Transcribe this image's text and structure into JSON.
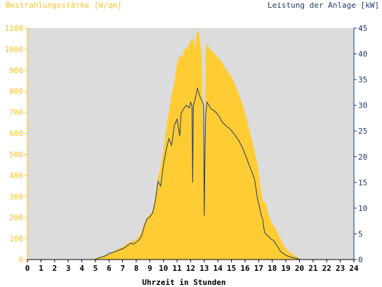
{
  "chart_data": {
    "type": "area",
    "left_axis_label": "Bestrahlungsstärke [W/qm]",
    "right_axis_label": "Leistung der Anlage [kW]",
    "xlabel": "Uhrzeit in Stunden",
    "xlim": [
      0,
      24
    ],
    "ylim_left": [
      0,
      1100
    ],
    "ylim_right": [
      0,
      45
    ],
    "x_ticks": [
      "0",
      "1",
      "2",
      "3",
      "4",
      "5",
      "6",
      "7",
      "8",
      "9",
      "10",
      "11",
      "12",
      "13",
      "14",
      "15",
      "16",
      "17",
      "18",
      "19",
      "20",
      "21",
      "22",
      "23",
      "24"
    ],
    "y_ticks_left": [
      "0",
      "100",
      "200",
      "300",
      "400",
      "500",
      "600",
      "700",
      "800",
      "900",
      "1000",
      "1100"
    ],
    "y_ticks_right": [
      "0",
      "5",
      "10",
      "15",
      "20",
      "25",
      "30",
      "35",
      "40",
      "45"
    ],
    "grid": false,
    "colors": {
      "irradiance": "#ffcc33",
      "power": "#1f3a6e",
      "background": "#dcdcdc"
    },
    "series": [
      {
        "name": "Bestrahlungsstärke [W/qm]",
        "axis": "left",
        "points": [
          [
            0,
            0
          ],
          [
            4.9,
            0
          ],
          [
            5.0,
            8
          ],
          [
            5.5,
            15
          ],
          [
            6.0,
            28
          ],
          [
            6.5,
            45
          ],
          [
            7.0,
            60
          ],
          [
            7.3,
            75
          ],
          [
            7.6,
            85
          ],
          [
            8.0,
            95
          ],
          [
            8.3,
            120
          ],
          [
            8.6,
            170
          ],
          [
            8.8,
            200
          ],
          [
            9.0,
            215
          ],
          [
            9.2,
            230
          ],
          [
            9.4,
            300
          ],
          [
            9.6,
            390
          ],
          [
            9.8,
            440
          ],
          [
            10.0,
            520
          ],
          [
            10.2,
            620
          ],
          [
            10.4,
            700
          ],
          [
            10.6,
            780
          ],
          [
            10.8,
            840
          ],
          [
            11.0,
            930
          ],
          [
            11.2,
            970
          ],
          [
            11.4,
            960
          ],
          [
            11.5,
            990
          ],
          [
            11.6,
            1000
          ],
          [
            11.8,
            1010
          ],
          [
            12.0,
            1040
          ],
          [
            12.2,
            1050
          ],
          [
            12.3,
            1000
          ],
          [
            12.4,
            1060
          ],
          [
            12.5,
            1090
          ],
          [
            12.6,
            1080
          ],
          [
            12.8,
            990
          ],
          [
            12.95,
            400
          ],
          [
            13.0,
            1000
          ],
          [
            13.05,
            250
          ],
          [
            13.1,
            990
          ],
          [
            13.2,
            1030
          ],
          [
            13.4,
            1000
          ],
          [
            13.6,
            990
          ],
          [
            13.8,
            975
          ],
          [
            14.0,
            960
          ],
          [
            14.3,
            940
          ],
          [
            14.6,
            905
          ],
          [
            15.0,
            870
          ],
          [
            15.4,
            810
          ],
          [
            15.8,
            740
          ],
          [
            16.2,
            650
          ],
          [
            16.6,
            540
          ],
          [
            16.9,
            460
          ],
          [
            17.1,
            360
          ],
          [
            17.3,
            280
          ],
          [
            17.5,
            270
          ],
          [
            17.7,
            220
          ],
          [
            18.0,
            170
          ],
          [
            18.3,
            140
          ],
          [
            18.6,
            100
          ],
          [
            18.9,
            60
          ],
          [
            19.2,
            40
          ],
          [
            19.5,
            25
          ],
          [
            19.8,
            12
          ],
          [
            20.0,
            5
          ],
          [
            20.1,
            0
          ],
          [
            24,
            0
          ]
        ]
      },
      {
        "name": "Leistung der Anlage [kW]",
        "axis": "right",
        "points": [
          [
            0,
            0
          ],
          [
            5.0,
            0
          ],
          [
            5.2,
            0.3
          ],
          [
            5.5,
            0.5
          ],
          [
            5.8,
            0.8
          ],
          [
            6.0,
            1.2
          ],
          [
            6.3,
            1.4
          ],
          [
            6.5,
            1.6
          ],
          [
            6.8,
            1.9
          ],
          [
            7.0,
            2.1
          ],
          [
            7.2,
            2.4
          ],
          [
            7.4,
            2.8
          ],
          [
            7.6,
            3.2
          ],
          [
            7.8,
            3.0
          ],
          [
            8.0,
            3.4
          ],
          [
            8.2,
            3.8
          ],
          [
            8.4,
            4.6
          ],
          [
            8.6,
            6.6
          ],
          [
            8.8,
            7.9
          ],
          [
            9.0,
            8.3
          ],
          [
            9.2,
            9.0
          ],
          [
            9.4,
            11.3
          ],
          [
            9.6,
            15.2
          ],
          [
            9.8,
            14.3
          ],
          [
            10.0,
            18.5
          ],
          [
            10.2,
            21.3
          ],
          [
            10.4,
            23.5
          ],
          [
            10.6,
            22.2
          ],
          [
            10.8,
            26.1
          ],
          [
            11.0,
            27.3
          ],
          [
            11.2,
            24.0
          ],
          [
            11.3,
            28.5
          ],
          [
            11.5,
            29.4
          ],
          [
            11.7,
            30.0
          ],
          [
            11.9,
            29.5
          ],
          [
            12.0,
            30.6
          ],
          [
            12.1,
            29.8
          ],
          [
            12.15,
            15.0
          ],
          [
            12.2,
            30.0
          ],
          [
            12.35,
            31.4
          ],
          [
            12.5,
            33.3
          ],
          [
            12.7,
            31.6
          ],
          [
            12.85,
            30.8
          ],
          [
            12.95,
            30.0
          ],
          [
            13.0,
            8.5
          ],
          [
            13.05,
            20.0
          ],
          [
            13.1,
            28.0
          ],
          [
            13.2,
            30.6
          ],
          [
            13.35,
            30.0
          ],
          [
            13.5,
            29.3
          ],
          [
            13.7,
            29.0
          ],
          [
            13.9,
            28.5
          ],
          [
            14.1,
            27.8
          ],
          [
            14.3,
            26.8
          ],
          [
            14.6,
            26.0
          ],
          [
            14.9,
            25.4
          ],
          [
            15.2,
            24.4
          ],
          [
            15.5,
            23.3
          ],
          [
            15.8,
            21.8
          ],
          [
            16.1,
            19.8
          ],
          [
            16.4,
            17.7
          ],
          [
            16.7,
            15.6
          ],
          [
            16.9,
            12.0
          ],
          [
            17.0,
            10.9
          ],
          [
            17.2,
            8.5
          ],
          [
            17.3,
            7.8
          ],
          [
            17.4,
            5.8
          ],
          [
            17.5,
            5.0
          ],
          [
            17.7,
            4.6
          ],
          [
            17.9,
            4.0
          ],
          [
            18.1,
            3.7
          ],
          [
            18.3,
            2.9
          ],
          [
            18.6,
            1.6
          ],
          [
            18.9,
            1.0
          ],
          [
            19.2,
            0.6
          ],
          [
            19.5,
            0.4
          ],
          [
            19.8,
            0.2
          ],
          [
            20.0,
            0
          ],
          [
            24,
            0
          ]
        ]
      }
    ]
  }
}
